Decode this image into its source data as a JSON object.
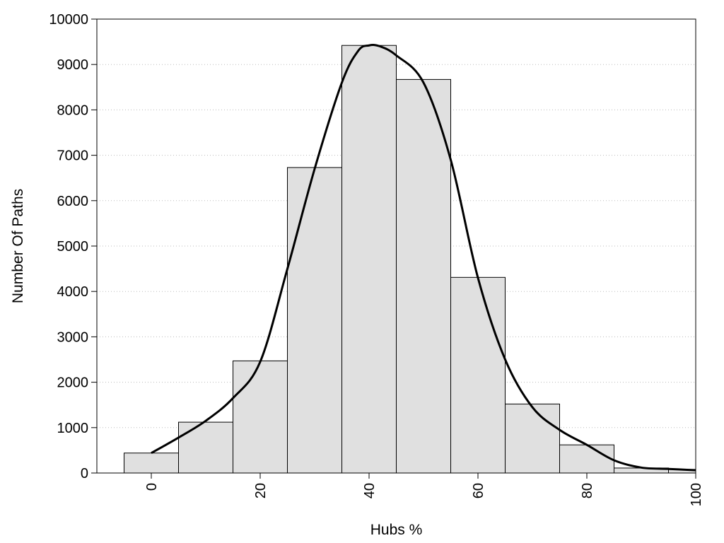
{
  "chart_data": {
    "type": "bar",
    "title": "",
    "xlabel": "Hubs %",
    "ylabel": "Number Of Paths",
    "xlim": [
      -10,
      100
    ],
    "ylim": [
      0,
      10000
    ],
    "x_ticks": [
      0,
      20,
      40,
      60,
      80,
      100
    ],
    "y_ticks": [
      0,
      1000,
      2000,
      3000,
      4000,
      5000,
      6000,
      7000,
      8000,
      9000,
      10000
    ],
    "grid": "horizontal dotted",
    "bin_width": 10,
    "bins": [
      {
        "center": 0,
        "value": 440
      },
      {
        "center": 10,
        "value": 1120
      },
      {
        "center": 20,
        "value": 2470
      },
      {
        "center": 30,
        "value": 6730
      },
      {
        "center": 40,
        "value": 9420
      },
      {
        "center": 50,
        "value": 8670
      },
      {
        "center": 60,
        "value": 4310
      },
      {
        "center": 70,
        "value": 1520
      },
      {
        "center": 80,
        "value": 620
      },
      {
        "center": 90,
        "value": 110
      },
      {
        "center": 100,
        "value": 80
      }
    ],
    "density_curve": {
      "x": [
        0,
        5,
        10,
        15,
        20,
        25,
        30,
        35,
        38,
        40,
        42,
        45,
        50,
        55,
        60,
        65,
        70,
        75,
        80,
        85,
        90,
        95,
        100
      ],
      "y": [
        440,
        780,
        1150,
        1650,
        2450,
        4500,
        6700,
        8600,
        9300,
        9420,
        9400,
        9200,
        8600,
        6900,
        4300,
        2500,
        1450,
        950,
        620,
        280,
        120,
        90,
        60
      ]
    },
    "colors": {
      "bar_fill": "#e0e0e0",
      "bar_stroke": "#000000",
      "curve": "#000000",
      "grid": "#bbbbbb"
    }
  }
}
